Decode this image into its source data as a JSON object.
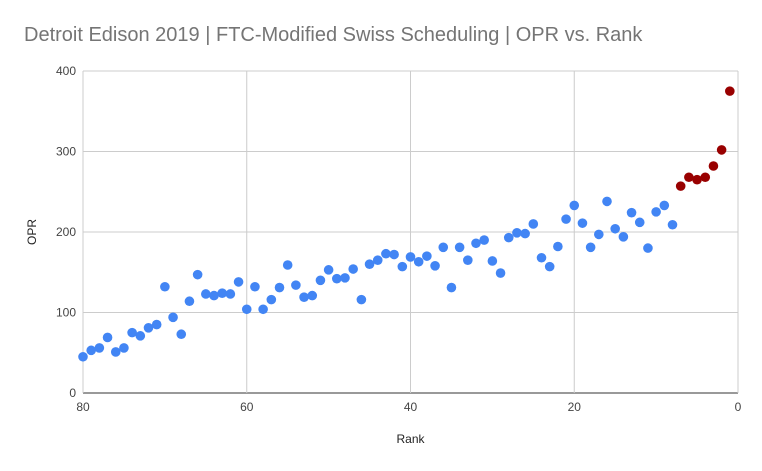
{
  "chart_data": {
    "type": "scatter",
    "title": "Detroit Edison 2019 | FTC-Modified Swiss Scheduling | OPR vs. Rank",
    "xlabel": "Rank",
    "ylabel": "OPR",
    "xlim": [
      80,
      0
    ],
    "ylim": [
      0,
      400
    ],
    "x_reversed": true,
    "xticks": [
      "80",
      "60",
      "40",
      "20",
      "0"
    ],
    "yticks": [
      "0",
      "100",
      "200",
      "300",
      "400"
    ],
    "grid": true,
    "legend": "none",
    "colors": {
      "primary": "#4285f4",
      "highlight": "#990000"
    },
    "series": [
      {
        "color": "#4285f4",
        "points": [
          [
            80,
            45
          ],
          [
            79,
            53
          ],
          [
            78,
            56
          ],
          [
            77,
            69
          ],
          [
            76,
            51
          ],
          [
            75,
            56
          ],
          [
            74,
            75
          ],
          [
            73,
            71
          ],
          [
            72,
            81
          ],
          [
            71,
            85
          ],
          [
            70,
            132
          ],
          [
            69,
            94
          ],
          [
            68,
            73
          ],
          [
            67,
            114
          ],
          [
            66,
            147
          ],
          [
            65,
            123
          ],
          [
            64,
            121
          ],
          [
            63,
            124
          ],
          [
            62,
            123
          ],
          [
            61,
            138
          ],
          [
            60,
            104
          ],
          [
            59,
            132
          ],
          [
            58,
            104
          ],
          [
            57,
            116
          ],
          [
            56,
            131
          ],
          [
            55,
            159
          ],
          [
            54,
            134
          ],
          [
            53,
            119
          ],
          [
            52,
            121
          ],
          [
            51,
            140
          ],
          [
            50,
            153
          ],
          [
            49,
            142
          ],
          [
            48,
            143
          ],
          [
            47,
            154
          ],
          [
            46,
            116
          ],
          [
            45,
            160
          ],
          [
            44,
            165
          ],
          [
            43,
            173
          ],
          [
            42,
            172
          ],
          [
            41,
            157
          ],
          [
            40,
            169
          ],
          [
            39,
            163
          ],
          [
            38,
            170
          ],
          [
            37,
            158
          ],
          [
            36,
            181
          ],
          [
            35,
            131
          ],
          [
            34,
            181
          ],
          [
            33,
            165
          ],
          [
            32,
            186
          ],
          [
            31,
            190
          ],
          [
            30,
            164
          ],
          [
            29,
            149
          ],
          [
            28,
            193
          ],
          [
            27,
            199
          ],
          [
            26,
            198
          ],
          [
            25,
            210
          ],
          [
            24,
            168
          ],
          [
            23,
            157
          ],
          [
            22,
            182
          ],
          [
            21,
            216
          ],
          [
            20,
            233
          ],
          [
            19,
            211
          ],
          [
            18,
            181
          ],
          [
            17,
            197
          ],
          [
            16,
            238
          ],
          [
            15,
            204
          ],
          [
            14,
            194
          ],
          [
            13,
            224
          ],
          [
            12,
            212
          ],
          [
            11,
            180
          ],
          [
            10,
            225
          ],
          [
            9,
            233
          ],
          [
            8,
            209
          ]
        ]
      },
      {
        "color": "#990000",
        "points": [
          [
            7,
            257
          ],
          [
            6,
            268
          ],
          [
            5,
            265
          ],
          [
            4,
            268
          ],
          [
            3,
            282
          ],
          [
            2,
            302
          ],
          [
            1,
            375
          ]
        ]
      }
    ]
  }
}
